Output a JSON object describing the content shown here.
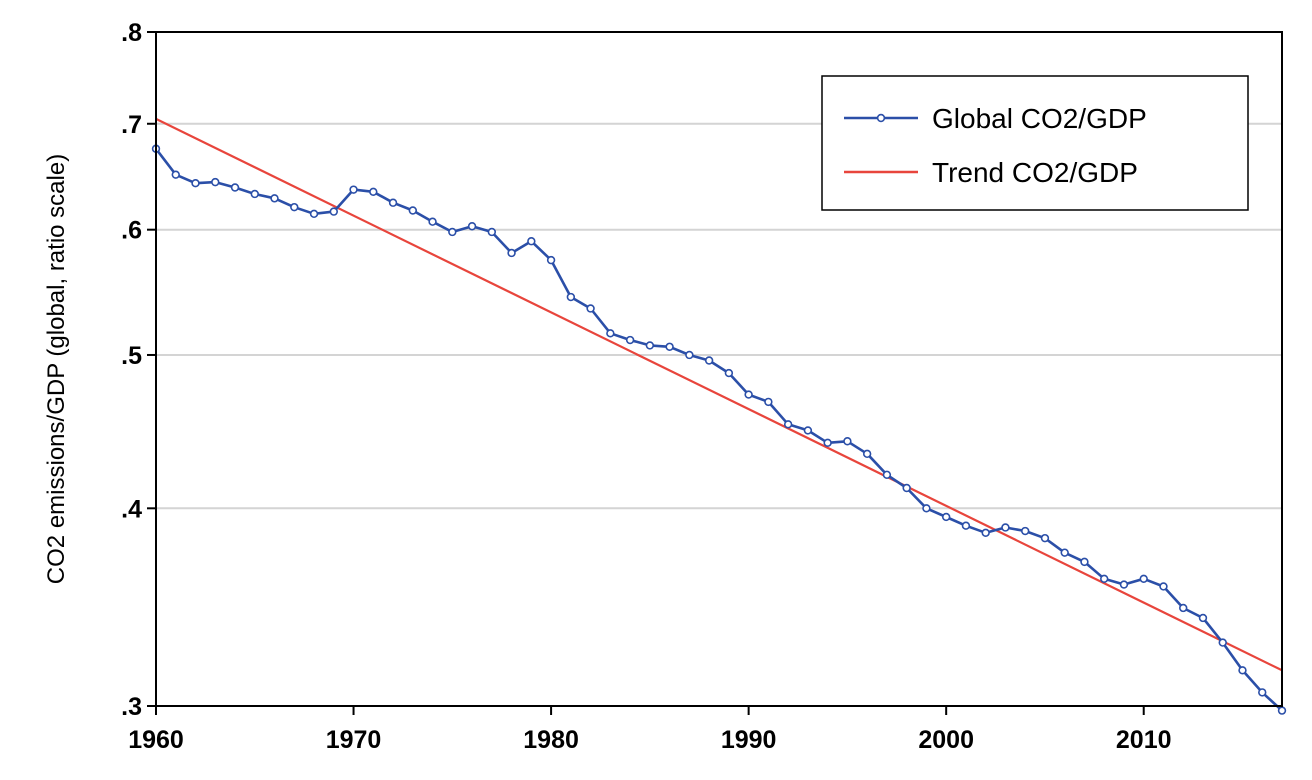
{
  "chart_data": {
    "type": "line",
    "ylabel": "CO2 emissions/GDP (global, ratio scale)",
    "xlabel": "",
    "y_scale": "log",
    "xlim": [
      1960,
      2017
    ],
    "ylim": [
      0.3,
      0.8
    ],
    "x_ticks": [
      1960,
      1970,
      1980,
      1990,
      2000,
      2010
    ],
    "y_ticks": [
      0.3,
      0.4,
      0.5,
      0.6,
      0.7,
      0.8
    ],
    "y_tick_labels": [
      ".3",
      ".4",
      ".5",
      ".6",
      ".7",
      ".8"
    ],
    "grid": "horizontal",
    "legend_position": "top-right",
    "series": [
      {
        "name": "Global CO2/GDP",
        "color": "#2b4fa8",
        "marker": "circle",
        "x": [
          1960,
          1961,
          1962,
          1963,
          1964,
          1965,
          1966,
          1967,
          1968,
          1969,
          1970,
          1971,
          1972,
          1973,
          1974,
          1975,
          1976,
          1977,
          1978,
          1979,
          1980,
          1981,
          1982,
          1983,
          1984,
          1985,
          1986,
          1987,
          1988,
          1989,
          1990,
          1991,
          1992,
          1993,
          1994,
          1995,
          1996,
          1997,
          1998,
          1999,
          2000,
          2001,
          2002,
          2003,
          2004,
          2005,
          2006,
          2007,
          2008,
          2009,
          2010,
          2011,
          2012,
          2013,
          2014,
          2015,
          2016,
          2017
        ],
        "values": [
          0.675,
          0.65,
          0.642,
          0.643,
          0.638,
          0.632,
          0.628,
          0.62,
          0.614,
          0.616,
          0.636,
          0.634,
          0.624,
          0.617,
          0.607,
          0.598,
          0.603,
          0.598,
          0.58,
          0.59,
          0.574,
          0.544,
          0.535,
          0.516,
          0.511,
          0.507,
          0.506,
          0.5,
          0.496,
          0.487,
          0.472,
          0.467,
          0.452,
          0.448,
          0.44,
          0.441,
          0.433,
          0.42,
          0.412,
          0.4,
          0.395,
          0.39,
          0.386,
          0.389,
          0.387,
          0.383,
          0.375,
          0.37,
          0.361,
          0.358,
          0.361,
          0.357,
          0.346,
          0.341,
          0.329,
          0.316,
          0.306,
          0.298
        ]
      },
      {
        "name": "Trend CO2/GDP",
        "color": "#e8453c",
        "marker": "none",
        "x": [
          1960,
          2017
        ],
        "values": [
          0.705,
          0.316
        ]
      }
    ]
  }
}
